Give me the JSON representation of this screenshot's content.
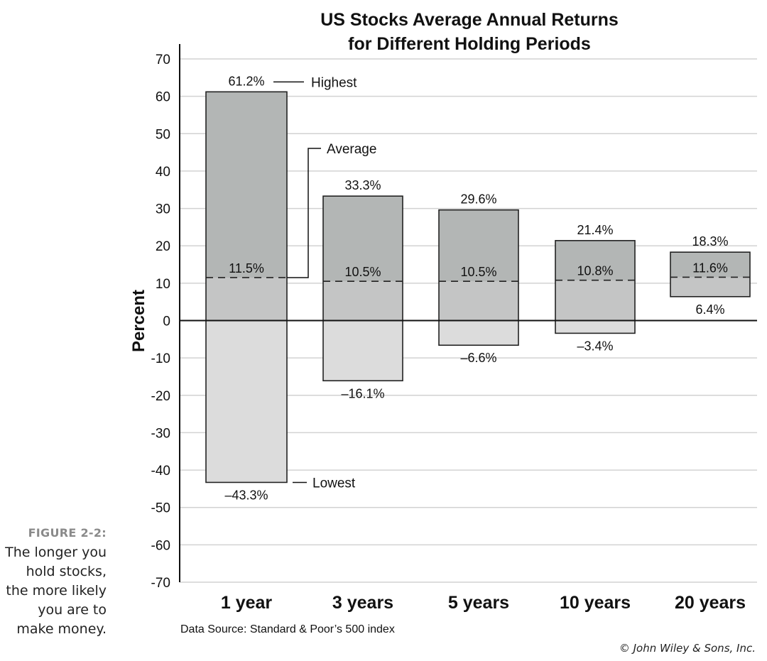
{
  "figure": {
    "label": "FIGURE 2-2:",
    "caption": "The longer you hold stocks, the more likely you are to make money."
  },
  "copyright": "© John Wiley & Sons, Inc.",
  "chart_data": {
    "type": "bar",
    "chart_kind": "floating range bars with average marker",
    "title_lines": [
      "US Stocks Average Annual Returns",
      "for Different Holding Periods"
    ],
    "ylabel": "Percent",
    "xlabel": "",
    "ylim": [
      -70,
      70
    ],
    "ytick_step": 10,
    "grid": true,
    "source": "Data Source: Standard & Poor’s 500 index",
    "categories": [
      "1 year",
      "3 years",
      "5 years",
      "10 years",
      "20 years"
    ],
    "series": [
      {
        "name": "Highest",
        "values": [
          61.2,
          33.3,
          29.6,
          21.4,
          18.3
        ],
        "labels": [
          "61.2%",
          "33.3%",
          "29.6%",
          "21.4%",
          "18.3%"
        ]
      },
      {
        "name": "Average",
        "values": [
          11.5,
          10.5,
          10.5,
          10.8,
          11.6
        ],
        "labels": [
          "11.5%",
          "10.5%",
          "10.5%",
          "10.8%",
          "11.6%"
        ]
      },
      {
        "name": "Lowest",
        "values": [
          -43.3,
          -16.1,
          -6.6,
          -3.4,
          6.4
        ],
        "labels": [
          "–43.3%",
          "–16.1%",
          "–6.6%",
          "–3.4%",
          "6.4%"
        ]
      }
    ],
    "colors": {
      "positive": "#b3b6b5",
      "average_band": "#c4c5c5",
      "negative": "#dcdcdc",
      "outline": "#222222",
      "grid": "#d2d2d2"
    }
  }
}
